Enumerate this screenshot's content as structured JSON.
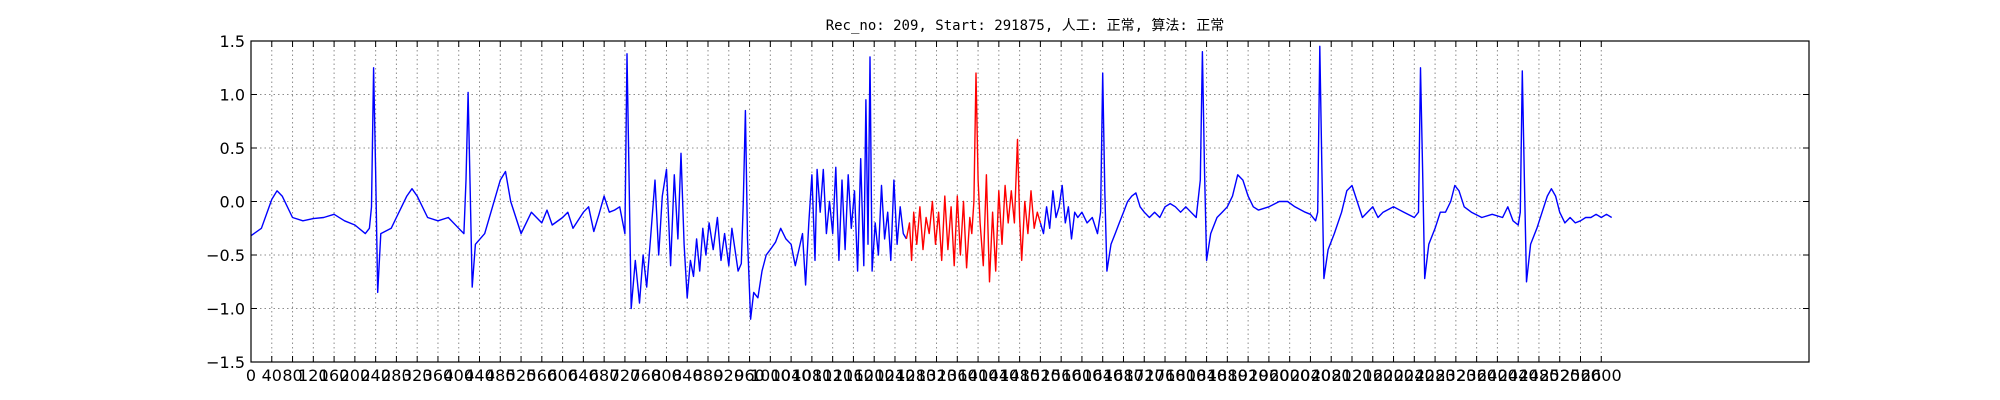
{
  "chart_data": {
    "type": "line",
    "title": "Rec_no: 209, Start: 291875, 人工: 正常, 算法: 正常",
    "xlabel": "",
    "ylabel": "",
    "xlim": [
      0,
      3000
    ],
    "ylim": [
      -1.5,
      1.5
    ],
    "grid": true,
    "yticks": [
      -1.5,
      -1.0,
      -0.5,
      0.0,
      0.5,
      1.0,
      1.5
    ],
    "ytick_labels": [
      "−1.5",
      "−1.0",
      "−0.5",
      "0.0",
      "0.5",
      "1.0",
      "1.5"
    ],
    "xticks": [
      0,
      40,
      80,
      120,
      160,
      200,
      240,
      280,
      320,
      360,
      400,
      440,
      480,
      520,
      560,
      600,
      640,
      680,
      720,
      760,
      800,
      840,
      880,
      920,
      960,
      1000,
      1040,
      1080,
      1120,
      1160,
      1200,
      1240,
      1280,
      1320,
      1360,
      1400,
      1440,
      1480,
      1520,
      1560,
      1600,
      1640,
      1680,
      1720,
      1760,
      1800,
      1840,
      1880,
      1920,
      1960,
      2000,
      2040,
      2080,
      2120,
      2160,
      2200,
      2240,
      2280,
      2320,
      2360,
      2400,
      2440,
      2480,
      2520,
      2560,
      2600
    ],
    "colors": {
      "series": "#0000ff",
      "highlight": "#ff0000",
      "grid": "#8c8c8c"
    },
    "series": [
      {
        "points": [
          [
            0,
            -0.32
          ],
          [
            20,
            -0.25
          ],
          [
            40,
            0.02
          ],
          [
            50,
            0.1
          ],
          [
            60,
            0.05
          ],
          [
            80,
            -0.15
          ],
          [
            100,
            -0.18
          ],
          [
            120,
            -0.16
          ],
          [
            140,
            -0.15
          ],
          [
            160,
            -0.12
          ],
          [
            180,
            -0.18
          ],
          [
            200,
            -0.22
          ],
          [
            220,
            -0.3
          ],
          [
            228,
            -0.25
          ],
          [
            232,
            -0.05
          ],
          [
            236,
            1.25
          ],
          [
            240,
            0.3
          ],
          [
            244,
            -0.85
          ],
          [
            250,
            -0.3
          ],
          [
            270,
            -0.25
          ],
          [
            280,
            -0.15
          ],
          [
            290,
            -0.05
          ],
          [
            300,
            0.05
          ],
          [
            310,
            0.12
          ],
          [
            320,
            0.05
          ],
          [
            340,
            -0.15
          ],
          [
            360,
            -0.18
          ],
          [
            380,
            -0.15
          ],
          [
            400,
            -0.25
          ],
          [
            410,
            -0.3
          ],
          [
            414,
            0.2
          ],
          [
            418,
            1.02
          ],
          [
            422,
            0.1
          ],
          [
            426,
            -0.8
          ],
          [
            432,
            -0.4
          ],
          [
            450,
            -0.3
          ],
          [
            465,
            -0.05
          ],
          [
            480,
            0.2
          ],
          [
            490,
            0.28
          ],
          [
            500,
            0.0
          ],
          [
            520,
            -0.3
          ],
          [
            540,
            -0.1
          ],
          [
            560,
            -0.2
          ],
          [
            570,
            -0.08
          ],
          [
            580,
            -0.22
          ],
          [
            600,
            -0.15
          ],
          [
            610,
            -0.1
          ],
          [
            620,
            -0.25
          ],
          [
            640,
            -0.1
          ],
          [
            650,
            -0.05
          ],
          [
            660,
            -0.28
          ],
          [
            670,
            -0.12
          ],
          [
            680,
            0.05
          ],
          [
            690,
            -0.1
          ],
          [
            700,
            -0.08
          ],
          [
            710,
            -0.05
          ],
          [
            720,
            -0.3
          ],
          [
            724,
            1.38
          ],
          [
            728,
            0.2
          ],
          [
            732,
            -1.0
          ],
          [
            740,
            -0.55
          ],
          [
            748,
            -0.95
          ],
          [
            755,
            -0.5
          ],
          [
            762,
            -0.8
          ],
          [
            770,
            -0.3
          ],
          [
            778,
            0.2
          ],
          [
            785,
            -0.5
          ],
          [
            792,
            0.05
          ],
          [
            800,
            0.3
          ],
          [
            808,
            -0.6
          ],
          [
            815,
            0.25
          ],
          [
            822,
            -0.35
          ],
          [
            828,
            0.45
          ],
          [
            834,
            -0.4
          ],
          [
            840,
            -0.9
          ],
          [
            846,
            -0.55
          ],
          [
            852,
            -0.7
          ],
          [
            858,
            -0.35
          ],
          [
            864,
            -0.65
          ],
          [
            870,
            -0.25
          ],
          [
            876,
            -0.5
          ],
          [
            882,
            -0.2
          ],
          [
            890,
            -0.45
          ],
          [
            898,
            -0.15
          ],
          [
            905,
            -0.55
          ],
          [
            912,
            -0.3
          ],
          [
            920,
            -0.6
          ],
          [
            926,
            -0.25
          ],
          [
            932,
            -0.45
          ],
          [
            938,
            -0.65
          ],
          [
            944,
            -0.58
          ],
          [
            948,
            0.0
          ],
          [
            952,
            0.85
          ],
          [
            956,
            -0.35
          ],
          [
            962,
            -1.1
          ],
          [
            968,
            -0.85
          ],
          [
            976,
            -0.9
          ],
          [
            984,
            -0.65
          ],
          [
            992,
            -0.5
          ],
          [
            1000,
            -0.45
          ],
          [
            1010,
            -0.38
          ],
          [
            1020,
            -0.25
          ],
          [
            1030,
            -0.35
          ],
          [
            1040,
            -0.4
          ],
          [
            1048,
            -0.6
          ],
          [
            1055,
            -0.45
          ],
          [
            1062,
            -0.3
          ],
          [
            1068,
            -0.78
          ],
          [
            1074,
            -0.2
          ],
          [
            1080,
            0.25
          ],
          [
            1086,
            -0.55
          ],
          [
            1090,
            0.3
          ],
          [
            1096,
            -0.1
          ],
          [
            1102,
            0.3
          ],
          [
            1108,
            -0.3
          ],
          [
            1114,
            0.0
          ],
          [
            1120,
            -0.3
          ],
          [
            1126,
            0.32
          ],
          [
            1132,
            -0.55
          ],
          [
            1138,
            0.2
          ],
          [
            1144,
            -0.45
          ],
          [
            1150,
            0.25
          ],
          [
            1156,
            -0.25
          ],
          [
            1162,
            0.1
          ],
          [
            1168,
            -0.65
          ],
          [
            1174,
            0.4
          ],
          [
            1180,
            -0.6
          ],
          [
            1184,
            0.95
          ],
          [
            1188,
            -0.4
          ],
          [
            1192,
            1.35
          ],
          [
            1196,
            -0.65
          ],
          [
            1202,
            -0.2
          ],
          [
            1208,
            -0.5
          ],
          [
            1214,
            0.15
          ],
          [
            1220,
            -0.35
          ],
          [
            1226,
            -0.1
          ],
          [
            1232,
            -0.55
          ],
          [
            1238,
            0.2
          ],
          [
            1244,
            -0.4
          ],
          [
            1250,
            -0.05
          ],
          [
            1256,
            -0.3
          ],
          [
            1262,
            -0.35
          ]
        ]
      },
      {
        "points": [
          [
            1262,
            -0.35
          ],
          [
            1268,
            -0.2
          ],
          [
            1272,
            -0.55
          ],
          [
            1276,
            -0.1
          ],
          [
            1282,
            -0.4
          ],
          [
            1288,
            -0.05
          ],
          [
            1294,
            -0.45
          ],
          [
            1300,
            -0.15
          ],
          [
            1306,
            -0.3
          ],
          [
            1312,
            0.0
          ],
          [
            1318,
            -0.4
          ],
          [
            1324,
            -0.1
          ],
          [
            1330,
            -0.55
          ],
          [
            1336,
            0.05
          ],
          [
            1342,
            -0.45
          ],
          [
            1348,
            -0.05
          ],
          [
            1354,
            -0.6
          ],
          [
            1360,
            0.05
          ],
          [
            1366,
            -0.5
          ],
          [
            1372,
            0.0
          ],
          [
            1378,
            -0.62
          ],
          [
            1384,
            -0.15
          ],
          [
            1388,
            -0.3
          ],
          [
            1392,
            0.0
          ],
          [
            1396,
            1.2
          ],
          [
            1400,
            0.2
          ],
          [
            1404,
            -0.2
          ],
          [
            1410,
            -0.6
          ],
          [
            1416,
            0.25
          ],
          [
            1422,
            -0.75
          ],
          [
            1428,
            -0.1
          ],
          [
            1434,
            -0.65
          ],
          [
            1440,
            0.1
          ],
          [
            1446,
            -0.4
          ],
          [
            1452,
            0.15
          ],
          [
            1458,
            -0.2
          ],
          [
            1464,
            0.1
          ],
          [
            1470,
            -0.2
          ],
          [
            1476,
            0.58
          ],
          [
            1480,
            -0.15
          ],
          [
            1484,
            -0.55
          ],
          [
            1490,
            0.0
          ],
          [
            1496,
            -0.3
          ],
          [
            1502,
            0.1
          ],
          [
            1508,
            -0.25
          ],
          [
            1514,
            -0.1
          ],
          [
            1520,
            -0.2
          ]
        ]
      },
      {
        "points": [
          [
            1520,
            -0.2
          ],
          [
            1526,
            -0.3
          ],
          [
            1532,
            -0.05
          ],
          [
            1538,
            -0.25
          ],
          [
            1544,
            0.1
          ],
          [
            1550,
            -0.15
          ],
          [
            1556,
            -0.05
          ],
          [
            1562,
            0.15
          ],
          [
            1568,
            -0.2
          ],
          [
            1574,
            -0.05
          ],
          [
            1580,
            -0.35
          ],
          [
            1586,
            -0.1
          ],
          [
            1592,
            -0.15
          ],
          [
            1600,
            -0.1
          ],
          [
            1610,
            -0.2
          ],
          [
            1620,
            -0.15
          ],
          [
            1630,
            -0.3
          ],
          [
            1636,
            -0.1
          ],
          [
            1640,
            1.2
          ],
          [
            1644,
            0.1
          ],
          [
            1648,
            -0.65
          ],
          [
            1656,
            -0.4
          ],
          [
            1664,
            -0.3
          ],
          [
            1672,
            -0.2
          ],
          [
            1680,
            -0.1
          ],
          [
            1688,
            0.0
          ],
          [
            1696,
            0.05
          ],
          [
            1704,
            0.08
          ],
          [
            1712,
            -0.05
          ],
          [
            1720,
            -0.1
          ],
          [
            1730,
            -0.15
          ],
          [
            1740,
            -0.1
          ],
          [
            1750,
            -0.15
          ],
          [
            1760,
            -0.05
          ],
          [
            1770,
            -0.02
          ],
          [
            1780,
            -0.05
          ],
          [
            1790,
            -0.1
          ],
          [
            1800,
            -0.05
          ],
          [
            1810,
            -0.1
          ],
          [
            1820,
            -0.15
          ],
          [
            1828,
            0.2
          ],
          [
            1832,
            1.4
          ],
          [
            1836,
            0.3
          ],
          [
            1840,
            -0.55
          ],
          [
            1848,
            -0.3
          ],
          [
            1860,
            -0.15
          ],
          [
            1870,
            -0.1
          ],
          [
            1880,
            -0.05
          ],
          [
            1890,
            0.05
          ],
          [
            1900,
            0.25
          ],
          [
            1910,
            0.2
          ],
          [
            1920,
            0.05
          ],
          [
            1930,
            -0.05
          ],
          [
            1940,
            -0.08
          ],
          [
            1960,
            -0.05
          ],
          [
            1980,
            0.0
          ],
          [
            1996,
            0.0
          ],
          [
            2010,
            -0.05
          ],
          [
            2030,
            -0.1
          ],
          [
            2040,
            -0.12
          ],
          [
            2050,
            -0.18
          ],
          [
            2054,
            -0.1
          ],
          [
            2058,
            1.45
          ],
          [
            2062,
            0.3
          ],
          [
            2066,
            -0.72
          ],
          [
            2074,
            -0.45
          ],
          [
            2086,
            -0.3
          ],
          [
            2100,
            -0.1
          ],
          [
            2110,
            0.1
          ],
          [
            2120,
            0.15
          ],
          [
            2130,
            0.0
          ],
          [
            2140,
            -0.15
          ],
          [
            2160,
            -0.05
          ],
          [
            2170,
            -0.15
          ],
          [
            2180,
            -0.1
          ],
          [
            2200,
            -0.05
          ],
          [
            2220,
            -0.1
          ],
          [
            2240,
            -0.15
          ],
          [
            2248,
            -0.1
          ],
          [
            2252,
            1.25
          ],
          [
            2256,
            0.3
          ],
          [
            2260,
            -0.72
          ],
          [
            2268,
            -0.4
          ],
          [
            2280,
            -0.25
          ],
          [
            2290,
            -0.1
          ],
          [
            2300,
            -0.1
          ],
          [
            2310,
            0.0
          ],
          [
            2318,
            0.15
          ],
          [
            2326,
            0.1
          ],
          [
            2336,
            -0.05
          ],
          [
            2350,
            -0.1
          ],
          [
            2370,
            -0.15
          ],
          [
            2390,
            -0.12
          ],
          [
            2410,
            -0.15
          ],
          [
            2420,
            -0.05
          ],
          [
            2430,
            -0.18
          ],
          [
            2440,
            -0.22
          ],
          [
            2444,
            -0.1
          ],
          [
            2448,
            1.22
          ],
          [
            2452,
            0.2
          ],
          [
            2456,
            -0.75
          ],
          [
            2464,
            -0.4
          ],
          [
            2476,
            -0.25
          ],
          [
            2486,
            -0.1
          ],
          [
            2496,
            0.05
          ],
          [
            2504,
            0.12
          ],
          [
            2512,
            0.05
          ],
          [
            2520,
            -0.1
          ],
          [
            2530,
            -0.2
          ],
          [
            2540,
            -0.15
          ],
          [
            2550,
            -0.2
          ],
          [
            2560,
            -0.18
          ],
          [
            2570,
            -0.15
          ],
          [
            2580,
            -0.15
          ],
          [
            2590,
            -0.12
          ],
          [
            2600,
            -0.15
          ],
          [
            2610,
            -0.12
          ],
          [
            2620,
            -0.15
          ]
        ]
      }
    ]
  }
}
